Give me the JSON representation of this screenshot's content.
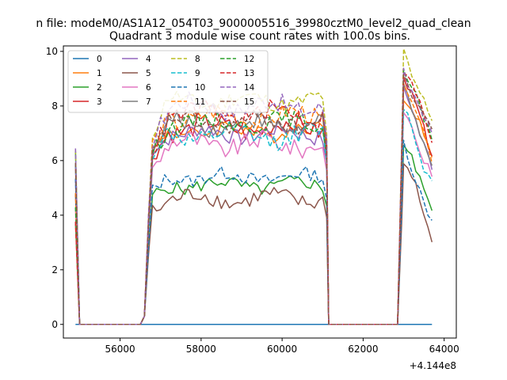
{
  "chart_data": {
    "type": "line",
    "suptitle": "n file: modeM0/AS1A12_054T03_9000005516_39980cztM0_level2_quad_clean",
    "title": "Quadrant 3 module wise count rates with 100.0s bins.",
    "xlabel": "",
    "ylabel": "",
    "x_offset_label": "+4.144e8",
    "xlim": [
      54600,
      64300
    ],
    "ylim": [
      -0.5,
      10.2
    ],
    "xticks": [
      56000,
      58000,
      60000,
      62000,
      64000
    ],
    "xtick_labels": [
      "56000",
      "58000",
      "60000",
      "62000",
      "64000"
    ],
    "yticks": [
      0,
      2,
      4,
      6,
      8,
      10
    ],
    "ytick_labels": [
      "0",
      "2",
      "4",
      "6",
      "8",
      "10"
    ],
    "grid": false,
    "legend_position": "top-left",
    "legend_columns": 4,
    "series": [
      {
        "name": "0",
        "color": "#1f77b4",
        "dash": "solid",
        "level": 0.0,
        "start": 0.0,
        "amp": 0.0,
        "phase": 0.0
      },
      {
        "name": "1",
        "color": "#ff7f0e",
        "dash": "solid",
        "level": 7.1,
        "start": 5.8,
        "amp": 0.3,
        "phase": 0.7
      },
      {
        "name": "2",
        "color": "#2ca02c",
        "dash": "solid",
        "level": 5.1,
        "start": 4.5,
        "amp": 0.25,
        "phase": 1.4
      },
      {
        "name": "3",
        "color": "#d62728",
        "dash": "solid",
        "level": 7.2,
        "start": 5.9,
        "amp": 0.35,
        "phase": 2.1
      },
      {
        "name": "4",
        "color": "#9467bd",
        "dash": "solid",
        "level": 7.0,
        "start": 6.4,
        "amp": 0.3,
        "phase": 2.8
      },
      {
        "name": "5",
        "color": "#8c564b",
        "dash": "solid",
        "level": 4.6,
        "start": 4.2,
        "amp": 0.3,
        "phase": 3.5
      },
      {
        "name": "6",
        "color": "#e377c2",
        "dash": "solid",
        "level": 6.6,
        "start": 5.6,
        "amp": 0.35,
        "phase": 4.2
      },
      {
        "name": "7",
        "color": "#7f7f7f",
        "dash": "solid",
        "level": 7.3,
        "start": 6.0,
        "amp": 0.3,
        "phase": 4.9
      },
      {
        "name": "8",
        "color": "#bcbd22",
        "dash": "dashed",
        "level": 8.2,
        "start": 6.6,
        "amp": 0.3,
        "phase": 5.6
      },
      {
        "name": "9",
        "color": "#17becf",
        "dash": "dashed",
        "level": 6.9,
        "start": 5.9,
        "amp": 0.35,
        "phase": 0.3
      },
      {
        "name": "10",
        "color": "#1f77b4",
        "dash": "dashed",
        "level": 5.4,
        "start": 4.6,
        "amp": 0.25,
        "phase": 1.0
      },
      {
        "name": "11",
        "color": "#ff7f0e",
        "dash": "dashed",
        "level": 7.6,
        "start": 6.2,
        "amp": 0.35,
        "phase": 1.7
      },
      {
        "name": "12",
        "color": "#2ca02c",
        "dash": "dashed",
        "level": 7.4,
        "start": 6.0,
        "amp": 0.3,
        "phase": 2.4
      },
      {
        "name": "13",
        "color": "#d62728",
        "dash": "dashed",
        "level": 7.7,
        "start": 6.2,
        "amp": 0.35,
        "phase": 3.1
      },
      {
        "name": "14",
        "color": "#9467bd",
        "dash": "dashed",
        "level": 8.0,
        "start": 6.7,
        "amp": 0.35,
        "phase": 3.8
      },
      {
        "name": "15",
        "color": "#8c564b",
        "dash": "dashed",
        "level": 7.4,
        "start": 6.1,
        "amp": 0.3,
        "phase": 4.5
      }
    ]
  }
}
